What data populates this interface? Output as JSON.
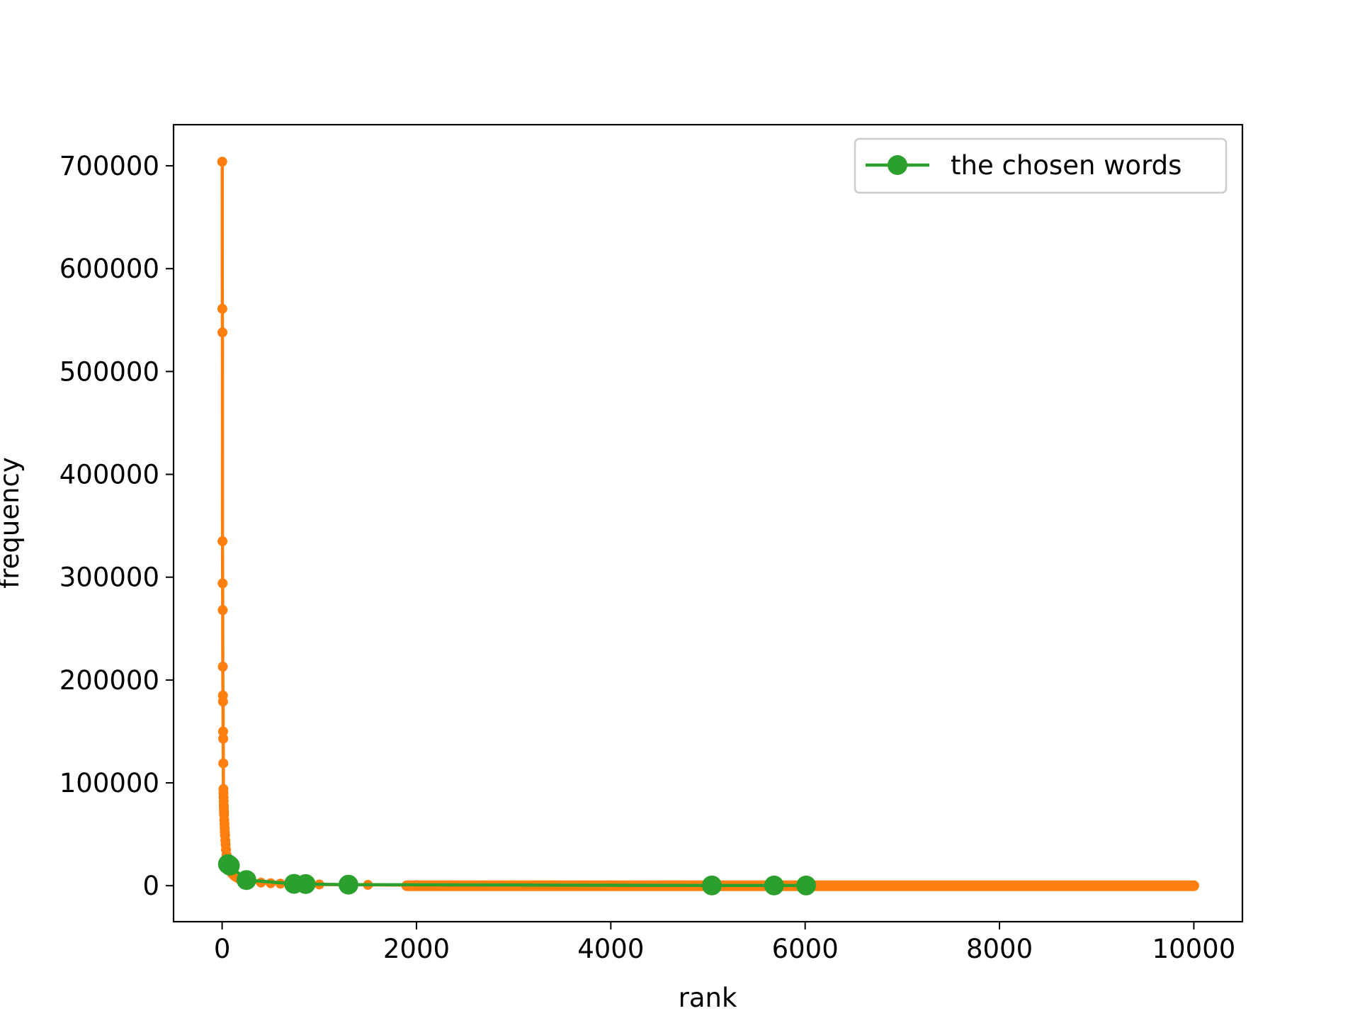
{
  "chart_data": {
    "type": "line",
    "title": "",
    "xlabel": "rank",
    "ylabel": "frequency",
    "xlim": [
      -500,
      10500
    ],
    "ylim": [
      -35000,
      740000
    ],
    "grid": false,
    "legend_position": "top-right",
    "x_ticks": [
      {
        "value": 0,
        "label": "0"
      },
      {
        "value": 2000,
        "label": "2000"
      },
      {
        "value": 4000,
        "label": "4000"
      },
      {
        "value": 6000,
        "label": "6000"
      },
      {
        "value": 8000,
        "label": "8000"
      },
      {
        "value": 10000,
        "label": "10000"
      }
    ],
    "y_ticks": [
      {
        "value": 0,
        "label": "0"
      },
      {
        "value": 100000,
        "label": "100000"
      },
      {
        "value": 200000,
        "label": "200000"
      },
      {
        "value": 300000,
        "label": "300000"
      },
      {
        "value": 400000,
        "label": "400000"
      },
      {
        "value": 500000,
        "label": "500000"
      },
      {
        "value": 600000,
        "label": "600000"
      },
      {
        "value": 700000,
        "label": "700000"
      }
    ],
    "series": [
      {
        "color": "#ff7f0e",
        "marker": "small-dot",
        "x": [
          1,
          2,
          3,
          4,
          5,
          6,
          7,
          8,
          9,
          10,
          11,
          12,
          13,
          14,
          15,
          16,
          17,
          18,
          19,
          20,
          22,
          24,
          26,
          28,
          30,
          33,
          36,
          40,
          45,
          50,
          55,
          60,
          70,
          80,
          90,
          100,
          120,
          140,
          160,
          180,
          200,
          250,
          300,
          400,
          500,
          600,
          800,
          1000,
          1500,
          2000,
          3000,
          4000,
          5000,
          6000,
          7000,
          8000,
          9000,
          10000
        ],
        "values": [
          704000,
          561000,
          538000,
          335000,
          294000,
          268000,
          213000,
          185000,
          179000,
          150000,
          143000,
          119000,
          94000,
          90000,
          86000,
          82000,
          78000,
          75000,
          72000,
          69000,
          64000,
          60000,
          56000,
          52000,
          49000,
          44000,
          40000,
          35000,
          30000,
          26000,
          23000,
          21000,
          18000,
          15500,
          13500,
          12000,
          10000,
          8500,
          7500,
          6600,
          6000,
          4800,
          4000,
          3000,
          2400,
          2000,
          1500,
          1200,
          800,
          600,
          400,
          300,
          240,
          200,
          170,
          150,
          130,
          120
        ]
      },
      {
        "name": "the chosen words",
        "color": "#2ca02c",
        "marker": "large-dot",
        "x": [
          60,
          80,
          250,
          740,
          860,
          1300,
          5040,
          5680,
          6010
        ],
        "values": [
          21000,
          19500,
          5500,
          1800,
          1600,
          1000,
          250,
          220,
          210
        ]
      }
    ]
  }
}
